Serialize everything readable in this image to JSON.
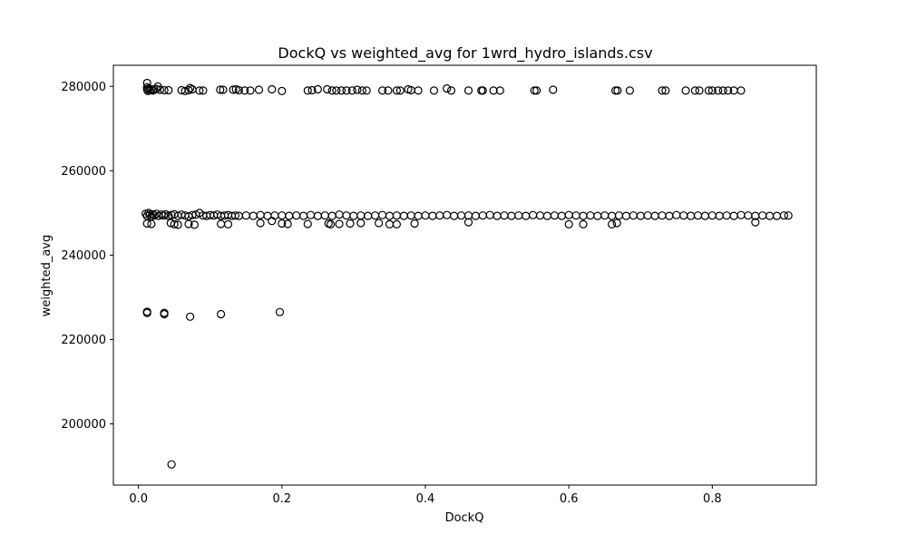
{
  "chart_data": {
    "type": "scatter",
    "title": "DockQ vs weighted_avg for 1wrd_hydro_islands.csv",
    "xlabel": "DockQ",
    "ylabel": "weighted_avg",
    "xlim": [
      -0.035,
      0.945
    ],
    "ylim": [
      185500,
      285000
    ],
    "x_ticks": [
      0.0,
      0.2,
      0.4,
      0.6,
      0.8
    ],
    "x_tick_labels": [
      "0.0",
      "0.2",
      "0.4",
      "0.6",
      "0.8"
    ],
    "y_ticks": [
      200000,
      220000,
      240000,
      260000,
      280000
    ],
    "y_tick_labels": [
      "200000",
      "220000",
      "240000",
      "260000",
      "280000"
    ],
    "grid": false,
    "marker": "open-circle",
    "marker_color": "#000000",
    "series": [
      {
        "points": [
          [
            0.012,
            280800
          ],
          [
            0.012,
            279800
          ],
          [
            0.012,
            279300
          ],
          [
            0.013,
            278900
          ],
          [
            0.014,
            279500
          ],
          [
            0.016,
            279100
          ],
          [
            0.018,
            279300
          ],
          [
            0.02,
            279000
          ],
          [
            0.022,
            279200
          ],
          [
            0.025,
            279400
          ],
          [
            0.027,
            280000
          ],
          [
            0.03,
            279200
          ],
          [
            0.036,
            279100
          ],
          [
            0.042,
            279100
          ],
          [
            0.06,
            279100
          ],
          [
            0.065,
            278900
          ],
          [
            0.07,
            279100
          ],
          [
            0.072,
            279600
          ],
          [
            0.075,
            279300
          ],
          [
            0.085,
            279000
          ],
          [
            0.09,
            279000
          ],
          [
            0.114,
            279200
          ],
          [
            0.118,
            279200
          ],
          [
            0.132,
            279200
          ],
          [
            0.136,
            279300
          ],
          [
            0.14,
            279100
          ],
          [
            0.148,
            279000
          ],
          [
            0.156,
            279000
          ],
          [
            0.168,
            279200
          ],
          [
            0.186,
            279300
          ],
          [
            0.2,
            278900
          ],
          [
            0.236,
            279000
          ],
          [
            0.242,
            279100
          ],
          [
            0.25,
            279300
          ],
          [
            0.263,
            279300
          ],
          [
            0.27,
            279000
          ],
          [
            0.276,
            279000
          ],
          [
            0.283,
            279000
          ],
          [
            0.29,
            279000
          ],
          [
            0.298,
            279000
          ],
          [
            0.305,
            279200
          ],
          [
            0.312,
            279000
          ],
          [
            0.318,
            279000
          ],
          [
            0.34,
            279000
          ],
          [
            0.348,
            279000
          ],
          [
            0.36,
            279000
          ],
          [
            0.365,
            279000
          ],
          [
            0.376,
            279300
          ],
          [
            0.38,
            279100
          ],
          [
            0.39,
            279000
          ],
          [
            0.412,
            279000
          ],
          [
            0.43,
            279500
          ],
          [
            0.436,
            279000
          ],
          [
            0.46,
            279000
          ],
          [
            0.478,
            279000
          ],
          [
            0.48,
            279000
          ],
          [
            0.495,
            279000
          ],
          [
            0.504,
            279000
          ],
          [
            0.552,
            279000
          ],
          [
            0.555,
            279000
          ],
          [
            0.578,
            279200
          ],
          [
            0.665,
            279000
          ],
          [
            0.668,
            279000
          ],
          [
            0.685,
            279000
          ],
          [
            0.73,
            279000
          ],
          [
            0.735,
            279000
          ],
          [
            0.763,
            279000
          ],
          [
            0.776,
            279000
          ],
          [
            0.782,
            279000
          ],
          [
            0.795,
            279000
          ],
          [
            0.8,
            279000
          ],
          [
            0.808,
            279000
          ],
          [
            0.815,
            279000
          ],
          [
            0.822,
            279000
          ],
          [
            0.83,
            279000
          ],
          [
            0.84,
            279000
          ],
          [
            0.01,
            249800
          ],
          [
            0.012,
            249300
          ],
          [
            0.014,
            250000
          ],
          [
            0.016,
            249600
          ],
          [
            0.018,
            249200
          ],
          [
            0.02,
            249700
          ],
          [
            0.022,
            249400
          ],
          [
            0.025,
            249800
          ],
          [
            0.028,
            249300
          ],
          [
            0.032,
            249600
          ],
          [
            0.035,
            249400
          ],
          [
            0.038,
            249700
          ],
          [
            0.042,
            249300
          ],
          [
            0.046,
            249500
          ],
          [
            0.05,
            249700
          ],
          [
            0.055,
            249300
          ],
          [
            0.06,
            249600
          ],
          [
            0.065,
            249400
          ],
          [
            0.07,
            249200
          ],
          [
            0.075,
            249500
          ],
          [
            0.08,
            249600
          ],
          [
            0.085,
            250000
          ],
          [
            0.09,
            249400
          ],
          [
            0.095,
            249300
          ],
          [
            0.1,
            249500
          ],
          [
            0.105,
            249400
          ],
          [
            0.11,
            249600
          ],
          [
            0.115,
            249300
          ],
          [
            0.12,
            249400
          ],
          [
            0.125,
            249500
          ],
          [
            0.13,
            249300
          ],
          [
            0.135,
            249400
          ],
          [
            0.14,
            249300
          ],
          [
            0.15,
            249400
          ],
          [
            0.16,
            249300
          ],
          [
            0.17,
            249500
          ],
          [
            0.18,
            249300
          ],
          [
            0.19,
            249400
          ],
          [
            0.2,
            249400
          ],
          [
            0.21,
            249300
          ],
          [
            0.22,
            249400
          ],
          [
            0.23,
            249300
          ],
          [
            0.24,
            249500
          ],
          [
            0.25,
            249300
          ],
          [
            0.26,
            249400
          ],
          [
            0.27,
            249300
          ],
          [
            0.28,
            249600
          ],
          [
            0.29,
            249400
          ],
          [
            0.3,
            249300
          ],
          [
            0.31,
            249400
          ],
          [
            0.32,
            249300
          ],
          [
            0.33,
            249400
          ],
          [
            0.34,
            249500
          ],
          [
            0.35,
            249300
          ],
          [
            0.36,
            249400
          ],
          [
            0.37,
            249300
          ],
          [
            0.38,
            249400
          ],
          [
            0.39,
            249300
          ],
          [
            0.4,
            249400
          ],
          [
            0.41,
            249300
          ],
          [
            0.42,
            249400
          ],
          [
            0.43,
            249500
          ],
          [
            0.44,
            249300
          ],
          [
            0.45,
            249400
          ],
          [
            0.46,
            249400
          ],
          [
            0.47,
            249300
          ],
          [
            0.48,
            249400
          ],
          [
            0.49,
            249500
          ],
          [
            0.5,
            249300
          ],
          [
            0.51,
            249400
          ],
          [
            0.52,
            249300
          ],
          [
            0.53,
            249400
          ],
          [
            0.54,
            249300
          ],
          [
            0.55,
            249500
          ],
          [
            0.56,
            249400
          ],
          [
            0.57,
            249300
          ],
          [
            0.58,
            249400
          ],
          [
            0.59,
            249300
          ],
          [
            0.6,
            249500
          ],
          [
            0.61,
            249400
          ],
          [
            0.62,
            249300
          ],
          [
            0.63,
            249400
          ],
          [
            0.64,
            249300
          ],
          [
            0.65,
            249400
          ],
          [
            0.66,
            249300
          ],
          [
            0.67,
            249400
          ],
          [
            0.68,
            249300
          ],
          [
            0.69,
            249400
          ],
          [
            0.7,
            249300
          ],
          [
            0.71,
            249400
          ],
          [
            0.72,
            249300
          ],
          [
            0.73,
            249400
          ],
          [
            0.74,
            249300
          ],
          [
            0.75,
            249500
          ],
          [
            0.76,
            249400
          ],
          [
            0.77,
            249300
          ],
          [
            0.78,
            249400
          ],
          [
            0.79,
            249300
          ],
          [
            0.8,
            249400
          ],
          [
            0.81,
            249300
          ],
          [
            0.82,
            249400
          ],
          [
            0.83,
            249300
          ],
          [
            0.84,
            249500
          ],
          [
            0.85,
            249400
          ],
          [
            0.86,
            249300
          ],
          [
            0.87,
            249400
          ],
          [
            0.88,
            249300
          ],
          [
            0.89,
            249300
          ],
          [
            0.9,
            249400
          ],
          [
            0.906,
            249400
          ],
          [
            0.012,
            247500
          ],
          [
            0.018,
            247400
          ],
          [
            0.045,
            247600
          ],
          [
            0.05,
            247300
          ],
          [
            0.055,
            247200
          ],
          [
            0.07,
            247400
          ],
          [
            0.078,
            247200
          ],
          [
            0.115,
            247400
          ],
          [
            0.125,
            247300
          ],
          [
            0.17,
            247600
          ],
          [
            0.186,
            248100
          ],
          [
            0.2,
            247500
          ],
          [
            0.208,
            247400
          ],
          [
            0.236,
            247400
          ],
          [
            0.265,
            247500
          ],
          [
            0.268,
            247300
          ],
          [
            0.28,
            247400
          ],
          [
            0.295,
            247500
          ],
          [
            0.31,
            247600
          ],
          [
            0.335,
            247600
          ],
          [
            0.35,
            247300
          ],
          [
            0.36,
            247300
          ],
          [
            0.385,
            247500
          ],
          [
            0.46,
            247800
          ],
          [
            0.6,
            247300
          ],
          [
            0.62,
            247300
          ],
          [
            0.66,
            247300
          ],
          [
            0.667,
            247600
          ],
          [
            0.86,
            247800
          ],
          [
            0.012,
            226600
          ],
          [
            0.012,
            226300
          ],
          [
            0.036,
            226300
          ],
          [
            0.036,
            226000
          ],
          [
            0.072,
            225400
          ],
          [
            0.115,
            226000
          ],
          [
            0.197,
            226500
          ],
          [
            0.046,
            190400
          ]
        ]
      }
    ]
  }
}
